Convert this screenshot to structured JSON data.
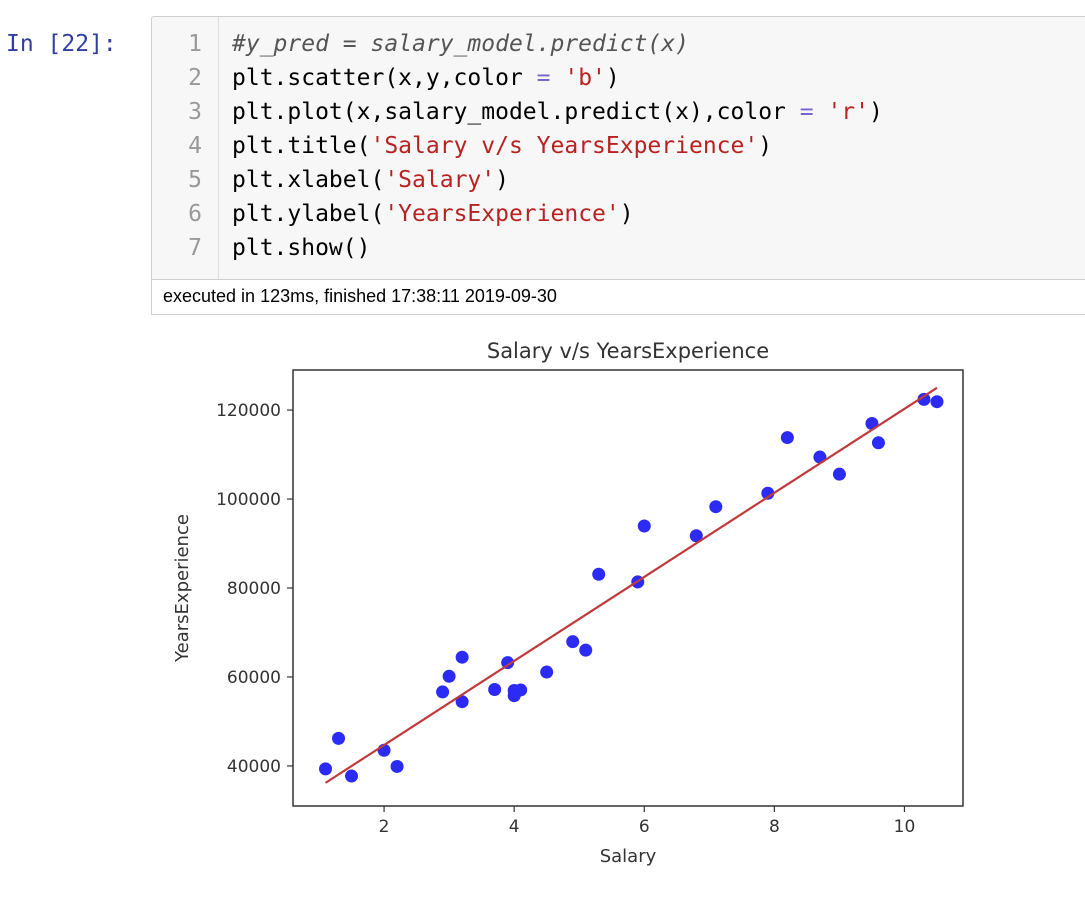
{
  "cell": {
    "prompt": "In [22]:",
    "lines": [
      {
        "n": "1",
        "parts": [
          {
            "t": "#y_pred = salary_model.predict(x)",
            "c": "cm"
          }
        ]
      },
      {
        "n": "2",
        "parts": [
          {
            "t": "plt.scatter(x,y,color ",
            "c": ""
          },
          {
            "t": "=",
            "c": "op"
          },
          {
            "t": " ",
            "c": ""
          },
          {
            "t": "'b'",
            "c": "st"
          },
          {
            "t": ")",
            "c": ""
          }
        ]
      },
      {
        "n": "3",
        "parts": [
          {
            "t": "plt.plot(x,salary_model.predict(x),color ",
            "c": ""
          },
          {
            "t": "=",
            "c": "op"
          },
          {
            "t": " ",
            "c": ""
          },
          {
            "t": "'r'",
            "c": "st"
          },
          {
            "t": ")",
            "c": ""
          }
        ]
      },
      {
        "n": "4",
        "parts": [
          {
            "t": "plt.title(",
            "c": ""
          },
          {
            "t": "'Salary v/s YearsExperience'",
            "c": "st"
          },
          {
            "t": ")",
            "c": ""
          }
        ]
      },
      {
        "n": "5",
        "parts": [
          {
            "t": "plt.xlabel(",
            "c": ""
          },
          {
            "t": "'Salary'",
            "c": "st"
          },
          {
            "t": ")",
            "c": ""
          }
        ]
      },
      {
        "n": "6",
        "parts": [
          {
            "t": "plt.ylabel(",
            "c": ""
          },
          {
            "t": "'YearsExperience'",
            "c": "st"
          },
          {
            "t": ")",
            "c": ""
          }
        ]
      },
      {
        "n": "7",
        "parts": [
          {
            "t": "plt.show()",
            "c": ""
          }
        ]
      }
    ],
    "execution_info": "executed in 123ms, finished 17:38:11 2019-09-30"
  },
  "colors": {
    "scatter": "#2b2bf5",
    "line": "#c0393b",
    "string": "#ba2121",
    "prompt": "#303f9f"
  },
  "chart_data": {
    "type": "scatter",
    "title": "Salary v/s YearsExperience",
    "xlabel": "Salary",
    "ylabel": "YearsExperience",
    "xlim": [
      0.6,
      10.9
    ],
    "ylim": [
      31000,
      129000
    ],
    "xticks": [
      2,
      4,
      6,
      8,
      10
    ],
    "yticks": [
      40000,
      60000,
      80000,
      100000,
      120000
    ],
    "grid": false,
    "points": [
      {
        "x": 1.1,
        "y": 39343
      },
      {
        "x": 1.3,
        "y": 46205
      },
      {
        "x": 1.5,
        "y": 37731
      },
      {
        "x": 2.0,
        "y": 43525
      },
      {
        "x": 2.2,
        "y": 39891
      },
      {
        "x": 2.9,
        "y": 56642
      },
      {
        "x": 3.0,
        "y": 60150
      },
      {
        "x": 3.2,
        "y": 54445
      },
      {
        "x": 3.2,
        "y": 64445
      },
      {
        "x": 3.7,
        "y": 57189
      },
      {
        "x": 3.9,
        "y": 63218
      },
      {
        "x": 4.0,
        "y": 55794
      },
      {
        "x": 4.0,
        "y": 56957
      },
      {
        "x": 4.1,
        "y": 57081
      },
      {
        "x": 4.5,
        "y": 61111
      },
      {
        "x": 4.9,
        "y": 67938
      },
      {
        "x": 5.1,
        "y": 66029
      },
      {
        "x": 5.3,
        "y": 83088
      },
      {
        "x": 5.9,
        "y": 81363
      },
      {
        "x": 6.0,
        "y": 93940
      },
      {
        "x": 6.8,
        "y": 91738
      },
      {
        "x": 7.1,
        "y": 98273
      },
      {
        "x": 7.9,
        "y": 101302
      },
      {
        "x": 8.2,
        "y": 113812
      },
      {
        "x": 8.7,
        "y": 109431
      },
      {
        "x": 9.0,
        "y": 105582
      },
      {
        "x": 9.5,
        "y": 116969
      },
      {
        "x": 9.6,
        "y": 112635
      },
      {
        "x": 10.3,
        "y": 122391
      },
      {
        "x": 10.5,
        "y": 121872
      }
    ],
    "fit_line": {
      "x": [
        1.1,
        10.5
      ],
      "y": [
        36200,
        125000
      ]
    }
  }
}
